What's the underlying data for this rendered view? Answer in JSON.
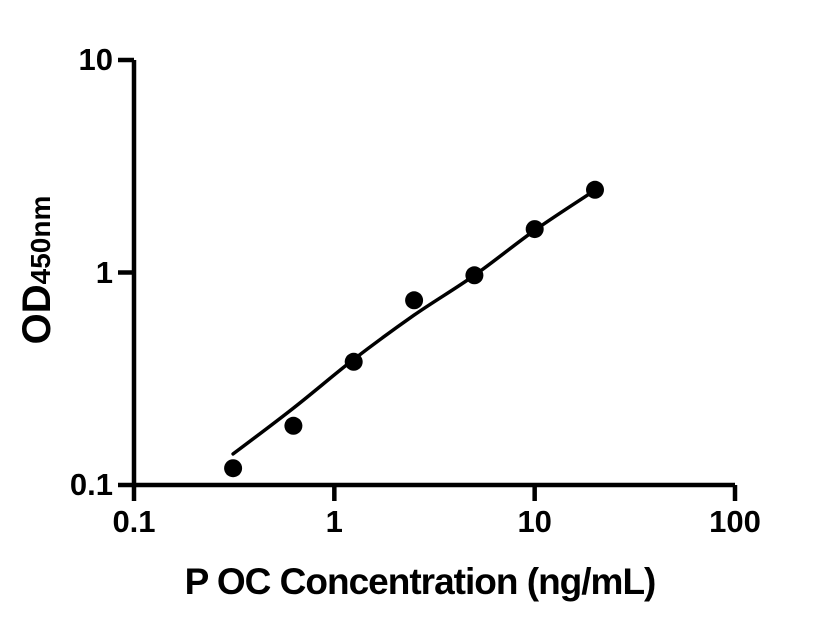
{
  "chart_data": {
    "type": "scatter",
    "title": "",
    "xlabel": "P OC Concentration (ng/mL)",
    "ylabel": "OD450nm",
    "ylabel_main": "OD",
    "ylabel_sub": "450nm",
    "x_scale": "log",
    "y_scale": "log",
    "xlim": [
      0.1,
      100
    ],
    "ylim": [
      0.1,
      10
    ],
    "x_tick_values": [
      0.1,
      1,
      10,
      100
    ],
    "x_tick_labels": [
      "0.1",
      "1",
      "10",
      "100"
    ],
    "y_tick_values": [
      0.1,
      1,
      10
    ],
    "y_tick_labels": [
      "0.1",
      "1",
      "10"
    ],
    "grid": false,
    "legend_position": "none",
    "marker_color": "#000000",
    "line_color": "#000000",
    "axis_color": "#000000",
    "series": [
      {
        "name": "standard-points",
        "marker": "filled-circle",
        "x": [
          0.3125,
          0.625,
          1.25,
          2.5,
          5,
          10,
          20
        ],
        "y": [
          0.12,
          0.19,
          0.38,
          0.74,
          0.97,
          1.6,
          2.45
        ]
      }
    ],
    "fit_curve": {
      "name": "fitted-standard-curve",
      "x": [
        0.3125,
        0.625,
        1.25,
        2.5,
        5,
        10,
        20
      ],
      "y": [
        0.14,
        0.23,
        0.39,
        0.63,
        0.97,
        1.58,
        2.44
      ]
    }
  }
}
